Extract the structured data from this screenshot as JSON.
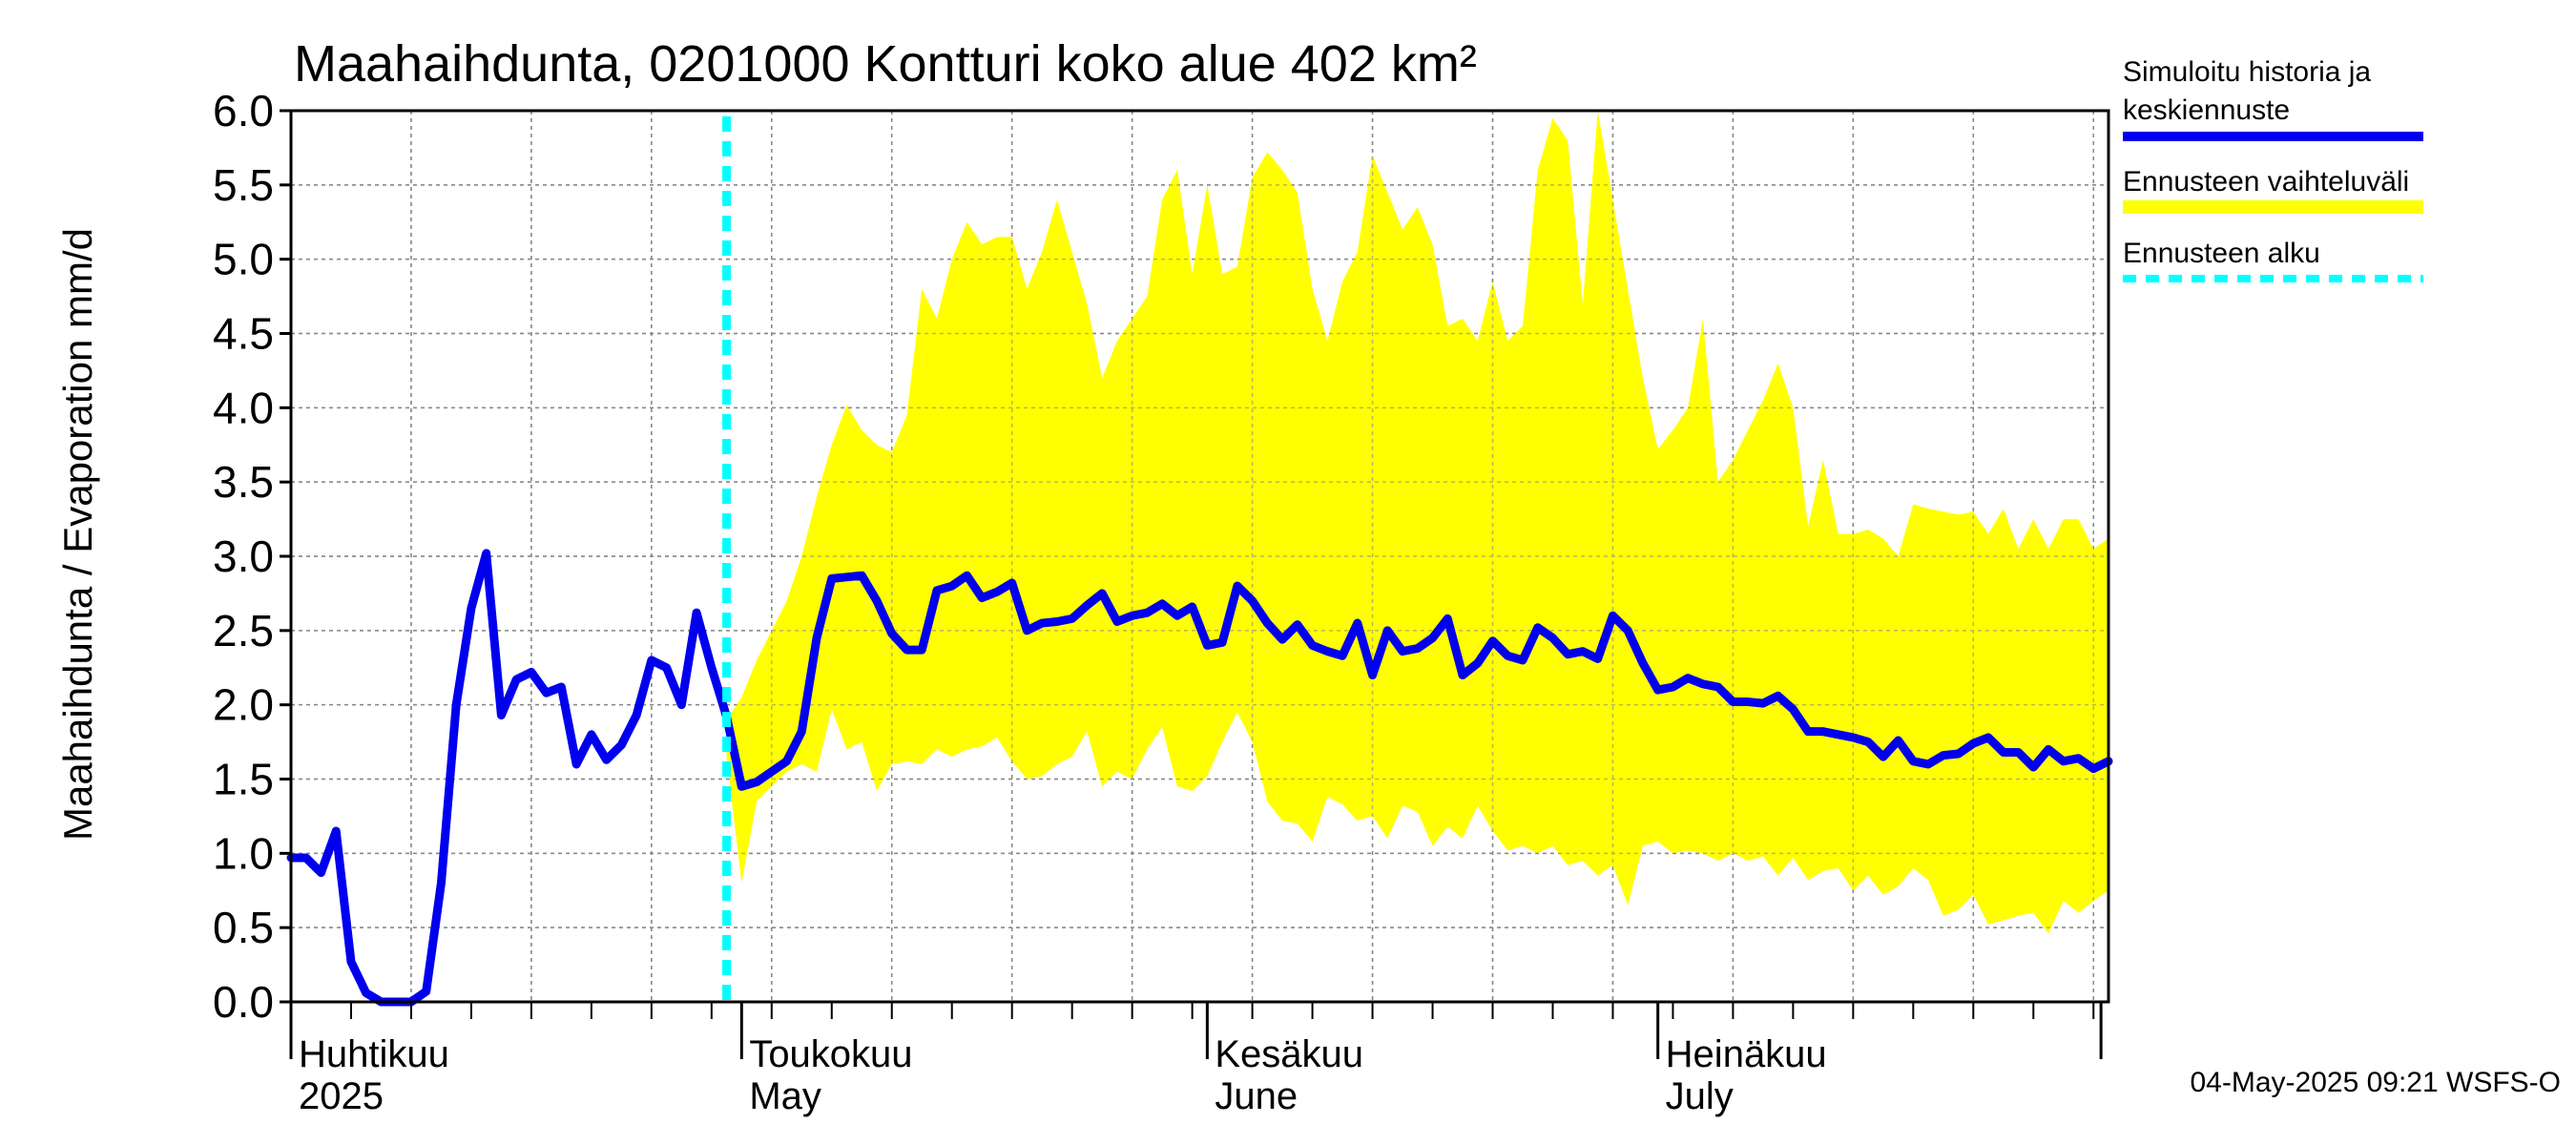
{
  "chart_data": {
    "type": "area",
    "title": "Maahaihdunta, 0201000 Kontturi koko alue 402 km²",
    "ylabel": "Maahaihdunta / Evaporation   mm/d",
    "ylim": [
      0,
      6
    ],
    "y_ticks": [
      "0.0",
      "0.5",
      "1.0",
      "1.5",
      "2.0",
      "2.5",
      "3.0",
      "3.5",
      "4.0",
      "4.5",
      "5.0",
      "5.5",
      "6.0"
    ],
    "x_range": [
      "2025-04-01",
      "2025-07-31"
    ],
    "month_labels": [
      {
        "date": "2025-04-01",
        "fi": "Huhtikuu",
        "en": "2025"
      },
      {
        "date": "2025-05-01",
        "fi": "Toukokuu",
        "en": "May"
      },
      {
        "date": "2025-06-01",
        "fi": "Kesäkuu",
        "en": "June"
      },
      {
        "date": "2025-07-01",
        "fi": "Heinäkuu",
        "en": "July"
      }
    ],
    "grid": true,
    "legend_position": "right",
    "forecast_start": "2025-04-30",
    "series": [
      {
        "name": "Simuloitu historia ja keskiennuste",
        "color": "#0000ee",
        "x": [
          "2025-04-01",
          "2025-04-02",
          "2025-04-03",
          "2025-04-04",
          "2025-04-05",
          "2025-04-06",
          "2025-04-07",
          "2025-04-08",
          "2025-04-09",
          "2025-04-10",
          "2025-04-11",
          "2025-04-12",
          "2025-04-13",
          "2025-04-14",
          "2025-04-15",
          "2025-04-16",
          "2025-04-17",
          "2025-04-18",
          "2025-04-19",
          "2025-04-20",
          "2025-04-21",
          "2025-04-22",
          "2025-04-23",
          "2025-04-24",
          "2025-04-25",
          "2025-04-26",
          "2025-04-27",
          "2025-04-28",
          "2025-04-29",
          "2025-04-30",
          "2025-05-01",
          "2025-05-02",
          "2025-05-03",
          "2025-05-04",
          "2025-05-05",
          "2025-05-06",
          "2025-05-07",
          "2025-05-08",
          "2025-05-09",
          "2025-05-10",
          "2025-05-11",
          "2025-05-12",
          "2025-05-13",
          "2025-05-14",
          "2025-05-15",
          "2025-05-16",
          "2025-05-17",
          "2025-05-18",
          "2025-05-19",
          "2025-05-20",
          "2025-05-21",
          "2025-05-22",
          "2025-05-23",
          "2025-05-24",
          "2025-05-25",
          "2025-05-26",
          "2025-05-27",
          "2025-05-28",
          "2025-05-29",
          "2025-05-30",
          "2025-05-31",
          "2025-06-01",
          "2025-06-02",
          "2025-06-03",
          "2025-06-04",
          "2025-06-05",
          "2025-06-06",
          "2025-06-07",
          "2025-06-08",
          "2025-06-09",
          "2025-06-10",
          "2025-06-11",
          "2025-06-12",
          "2025-06-13",
          "2025-06-14",
          "2025-06-15",
          "2025-06-16",
          "2025-06-17",
          "2025-06-18",
          "2025-06-19",
          "2025-06-20",
          "2025-06-21",
          "2025-06-22",
          "2025-06-23",
          "2025-06-24",
          "2025-06-25",
          "2025-06-26",
          "2025-06-27",
          "2025-06-28",
          "2025-06-29",
          "2025-06-30",
          "2025-07-01",
          "2025-07-02",
          "2025-07-03",
          "2025-07-04",
          "2025-07-05",
          "2025-07-06",
          "2025-07-07",
          "2025-07-08",
          "2025-07-09",
          "2025-07-10",
          "2025-07-11",
          "2025-07-12",
          "2025-07-13",
          "2025-07-14",
          "2025-07-15",
          "2025-07-16",
          "2025-07-17",
          "2025-07-18",
          "2025-07-19",
          "2025-07-20",
          "2025-07-21",
          "2025-07-22",
          "2025-07-23",
          "2025-07-24",
          "2025-07-25",
          "2025-07-26",
          "2025-07-27",
          "2025-07-28",
          "2025-07-29",
          "2025-07-30",
          "2025-07-31"
        ],
        "values": [
          0.97,
          0.97,
          0.87,
          1.15,
          0.27,
          0.06,
          0.0,
          0.0,
          0.0,
          0.07,
          0.8,
          2.0,
          2.65,
          3.02,
          1.93,
          2.17,
          2.22,
          2.08,
          2.12,
          1.6,
          1.8,
          1.63,
          1.73,
          1.93,
          2.3,
          2.25,
          2.0,
          2.62,
          2.25,
          1.92,
          1.45,
          1.48,
          1.55,
          1.62,
          1.82,
          2.45,
          2.85,
          2.86,
          2.87,
          2.7,
          2.48,
          2.37,
          2.37,
          2.77,
          2.8,
          2.87,
          2.72,
          2.76,
          2.82,
          2.5,
          2.55,
          2.56,
          2.58,
          2.67,
          2.75,
          2.56,
          2.6,
          2.62,
          2.68,
          2.6,
          2.66,
          2.4,
          2.42,
          2.8,
          2.7,
          2.55,
          2.44,
          2.54,
          2.4,
          2.36,
          2.33,
          2.55,
          2.2,
          2.5,
          2.36,
          2.38,
          2.45,
          2.58,
          2.2,
          2.28,
          2.43,
          2.33,
          2.3,
          2.52,
          2.45,
          2.34,
          2.36,
          2.31,
          2.6,
          2.5,
          2.28,
          2.1,
          2.12,
          2.18,
          2.14,
          2.12,
          2.02,
          2.02,
          2.01,
          2.06,
          1.97,
          1.82,
          1.82,
          1.8,
          1.78,
          1.75,
          1.65,
          1.76,
          1.62,
          1.6,
          1.66,
          1.67,
          1.74,
          1.78,
          1.68,
          1.68,
          1.58,
          1.7,
          1.62,
          1.64,
          1.57,
          1.62
        ]
      },
      {
        "name": "Ennusteen vaihteluväli",
        "color": "#ffff00",
        "x": [
          "2025-04-30",
          "2025-05-01",
          "2025-05-02",
          "2025-05-03",
          "2025-05-04",
          "2025-05-05",
          "2025-05-06",
          "2025-05-07",
          "2025-05-08",
          "2025-05-09",
          "2025-05-10",
          "2025-05-11",
          "2025-05-12",
          "2025-05-13",
          "2025-05-14",
          "2025-05-15",
          "2025-05-16",
          "2025-05-17",
          "2025-05-18",
          "2025-05-19",
          "2025-05-20",
          "2025-05-21",
          "2025-05-22",
          "2025-05-23",
          "2025-05-24",
          "2025-05-25",
          "2025-05-26",
          "2025-05-27",
          "2025-05-28",
          "2025-05-29",
          "2025-05-30",
          "2025-05-31",
          "2025-06-01",
          "2025-06-02",
          "2025-06-03",
          "2025-06-04",
          "2025-06-05",
          "2025-06-06",
          "2025-06-07",
          "2025-06-08",
          "2025-06-09",
          "2025-06-10",
          "2025-06-11",
          "2025-06-12",
          "2025-06-13",
          "2025-06-14",
          "2025-06-15",
          "2025-06-16",
          "2025-06-17",
          "2025-06-18",
          "2025-06-19",
          "2025-06-20",
          "2025-06-21",
          "2025-06-22",
          "2025-06-23",
          "2025-06-24",
          "2025-06-25",
          "2025-06-26",
          "2025-06-27",
          "2025-06-28",
          "2025-06-29",
          "2025-06-30",
          "2025-07-01",
          "2025-07-02",
          "2025-07-03",
          "2025-07-04",
          "2025-07-05",
          "2025-07-06",
          "2025-07-07",
          "2025-07-08",
          "2025-07-09",
          "2025-07-10",
          "2025-07-11",
          "2025-07-12",
          "2025-07-13",
          "2025-07-14",
          "2025-07-15",
          "2025-07-16",
          "2025-07-17",
          "2025-07-18",
          "2025-07-19",
          "2025-07-20",
          "2025-07-21",
          "2025-07-22",
          "2025-07-23",
          "2025-07-24",
          "2025-07-25",
          "2025-07-26",
          "2025-07-27",
          "2025-07-28",
          "2025-07-29",
          "2025-07-30",
          "2025-07-31"
        ],
        "upper": [
          1.9,
          2.05,
          2.3,
          2.5,
          2.7,
          3.0,
          3.4,
          3.75,
          4.02,
          3.85,
          3.75,
          3.7,
          3.95,
          4.8,
          4.6,
          5.0,
          5.25,
          5.1,
          5.15,
          5.15,
          4.8,
          5.05,
          5.4,
          5.05,
          4.7,
          4.2,
          4.45,
          4.6,
          4.75,
          5.4,
          5.6,
          4.9,
          5.5,
          4.9,
          4.95,
          5.55,
          5.72,
          5.6,
          5.45,
          4.8,
          4.45,
          4.85,
          5.05,
          5.7,
          5.45,
          5.2,
          5.35,
          5.1,
          4.55,
          4.6,
          4.45,
          4.85,
          4.45,
          4.55,
          5.6,
          5.95,
          5.8,
          4.7,
          6.0,
          5.4,
          4.8,
          4.2,
          3.72,
          3.85,
          4.0,
          4.6,
          3.5,
          3.65,
          3.85,
          4.05,
          4.3,
          4.0,
          3.2,
          3.65,
          3.15,
          3.15,
          3.18,
          3.12,
          3.0,
          3.35,
          3.32,
          3.3,
          3.28,
          3.3,
          3.15,
          3.32,
          3.05,
          3.25,
          3.05,
          3.25,
          3.25,
          3.05,
          3.12
        ],
        "lower": [
          1.65,
          0.8,
          1.35,
          1.45,
          1.55,
          1.6,
          1.55,
          1.97,
          1.7,
          1.75,
          1.42,
          1.6,
          1.62,
          1.6,
          1.7,
          1.65,
          1.7,
          1.72,
          1.78,
          1.62,
          1.5,
          1.52,
          1.6,
          1.65,
          1.82,
          1.45,
          1.55,
          1.5,
          1.7,
          1.85,
          1.45,
          1.42,
          1.52,
          1.75,
          1.95,
          1.75,
          1.35,
          1.22,
          1.2,
          1.08,
          1.38,
          1.33,
          1.22,
          1.25,
          1.1,
          1.32,
          1.28,
          1.05,
          1.18,
          1.1,
          1.32,
          1.15,
          1.02,
          1.05,
          1.0,
          1.05,
          0.92,
          0.95,
          0.85,
          0.92,
          0.65,
          1.05,
          1.08,
          1.0,
          1.02,
          1.0,
          0.95,
          1.0,
          0.95,
          0.98,
          0.85,
          0.97,
          0.82,
          0.88,
          0.9,
          0.75,
          0.85,
          0.72,
          0.78,
          0.9,
          0.82,
          0.58,
          0.62,
          0.72,
          0.52,
          0.55,
          0.58,
          0.6,
          0.46,
          0.68,
          0.6,
          0.68,
          0.75
        ]
      },
      {
        "name": "Ennusteen alku",
        "color": "#00ffff",
        "x": [
          "2025-04-30",
          "2025-04-30"
        ],
        "values": [
          0,
          6
        ]
      }
    ],
    "footer": "04-May-2025 09:21 WSFS-O"
  }
}
